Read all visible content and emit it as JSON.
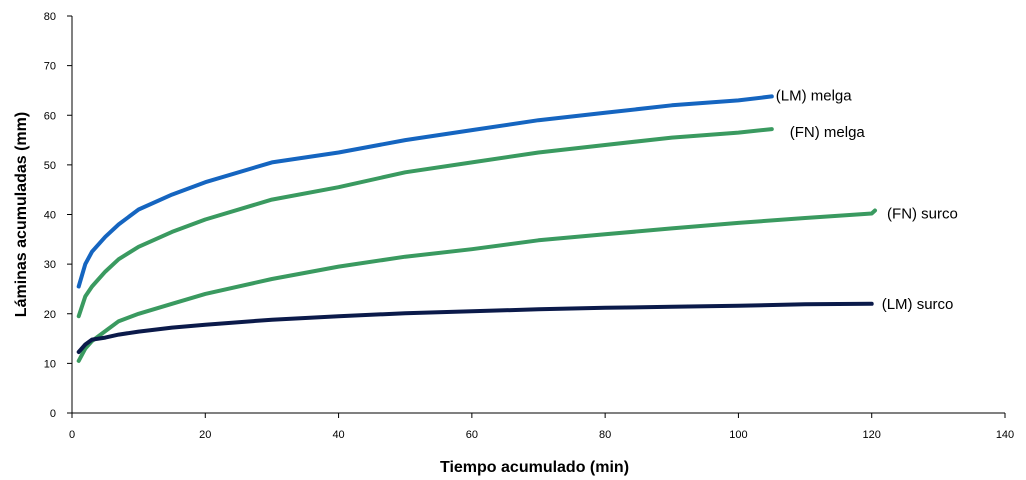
{
  "chart_data": {
    "type": "line",
    "xlabel": "Tiempo acumulado (min)",
    "ylabel": "Láminas acumuladas (mm)",
    "xlim": [
      0,
      140
    ],
    "ylim": [
      0,
      80
    ],
    "x_ticks": [
      "0",
      "20",
      "40",
      "60",
      "80",
      "100",
      "120",
      "140"
    ],
    "y_ticks": [
      "0",
      "10",
      "20",
      "30",
      "40",
      "50",
      "60",
      "70",
      "80"
    ],
    "grid": false,
    "legend": "none",
    "series": [
      {
        "name": "(LM) melga",
        "color": "#1565c0",
        "x": [
          1,
          2,
          3,
          5,
          7,
          10,
          15,
          20,
          30,
          40,
          50,
          60,
          70,
          80,
          90,
          100,
          105
        ],
        "y": [
          25.5,
          30,
          32.5,
          35.5,
          38,
          41,
          44,
          46.5,
          50.5,
          52.5,
          55,
          57,
          59,
          60.5,
          62,
          63,
          63.8
        ]
      },
      {
        "name": "(FN) melga",
        "color": "#3a9a60",
        "x": [
          1,
          2,
          3,
          5,
          7,
          10,
          15,
          20,
          30,
          40,
          50,
          60,
          70,
          80,
          90,
          100,
          105
        ],
        "y": [
          19.5,
          23.5,
          25.5,
          28.5,
          31,
          33.5,
          36.5,
          39,
          43,
          45.5,
          48.5,
          50.5,
          52.5,
          54,
          55.5,
          56.5,
          57.2
        ]
      },
      {
        "name": "(FN) surco",
        "color": "#3a9a60",
        "x": [
          1,
          2,
          3,
          5,
          7,
          10,
          15,
          20,
          30,
          40,
          50,
          60,
          70,
          80,
          90,
          100,
          110,
          120,
          120.5
        ],
        "y": [
          10.5,
          13,
          14.5,
          16.5,
          18.5,
          20,
          22,
          24,
          27,
          29.5,
          31.5,
          33,
          34.8,
          36,
          37.2,
          38.3,
          39.3,
          40.2,
          40.8
        ]
      },
      {
        "name": "(LM) surco",
        "color": "#0b1a4a",
        "x": [
          1,
          2,
          3,
          5,
          7,
          10,
          15,
          20,
          30,
          40,
          50,
          60,
          70,
          80,
          90,
          100,
          110,
          120
        ],
        "y": [
          12.3,
          13.8,
          14.8,
          15.2,
          15.8,
          16.4,
          17.2,
          17.8,
          18.8,
          19.5,
          20.1,
          20.5,
          20.9,
          21.2,
          21.4,
          21.6,
          21.9,
          22.0
        ]
      }
    ]
  }
}
